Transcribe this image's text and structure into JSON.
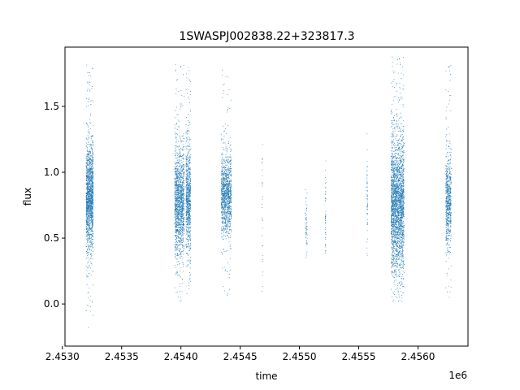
{
  "chart_data": {
    "type": "scatter",
    "title": "1SWASPJ002838.22+323817.3",
    "xlabel": "time",
    "ylabel": "flux",
    "x_offset_label": "1e6",
    "xlim": [
      2453022,
      2456422
    ],
    "ylim": [
      -0.32,
      1.95
    ],
    "x_ticks": [
      2453000,
      2453500,
      2454000,
      2454500,
      2455000,
      2455500,
      2456000
    ],
    "x_tick_labels": [
      "2.4530",
      "2.4535",
      "2.4540",
      "2.4545",
      "2.4550",
      "2.4555",
      "2.4560"
    ],
    "y_ticks": [
      0.0,
      0.5,
      1.0,
      1.5
    ],
    "y_tick_labels": [
      "0.0",
      "0.5",
      "1.0",
      "1.5"
    ],
    "grid": false,
    "legend": "none",
    "point_color": "#1f77b4",
    "series": [
      {
        "clusters": [
          {
            "x_center": 2453228,
            "x_width": 60,
            "y_center": 0.8,
            "y_spread": 0.2,
            "y_min": -0.22,
            "y_max": 1.82,
            "count": 1600
          },
          {
            "x_center": 2453985,
            "x_width": 80,
            "y_center": 0.78,
            "y_spread": 0.2,
            "y_min": 0.0,
            "y_max": 1.82,
            "count": 1500
          },
          {
            "x_center": 2454060,
            "x_width": 40,
            "y_center": 0.8,
            "y_spread": 0.2,
            "y_min": 0.05,
            "y_max": 1.82,
            "count": 800
          },
          {
            "x_center": 2454380,
            "x_width": 85,
            "y_center": 0.82,
            "y_spread": 0.15,
            "y_min": 0.05,
            "y_max": 1.78,
            "count": 1200
          },
          {
            "x_center": 2454685,
            "x_width": 6,
            "y_center": 0.7,
            "y_spread": 0.3,
            "y_min": 0.0,
            "y_max": 1.3,
            "count": 30
          },
          {
            "x_center": 2455055,
            "x_width": 18,
            "y_center": 0.6,
            "y_spread": 0.12,
            "y_min": 0.35,
            "y_max": 0.95,
            "count": 60
          },
          {
            "x_center": 2455218,
            "x_width": 6,
            "y_center": 0.7,
            "y_spread": 0.18,
            "y_min": 0.38,
            "y_max": 1.15,
            "count": 50
          },
          {
            "x_center": 2455570,
            "x_width": 6,
            "y_center": 0.8,
            "y_spread": 0.18,
            "y_min": 0.32,
            "y_max": 1.32,
            "count": 60
          },
          {
            "x_center": 2455825,
            "x_width": 110,
            "y_center": 0.75,
            "y_spread": 0.25,
            "y_min": 0.0,
            "y_max": 1.88,
            "count": 2600
          },
          {
            "x_center": 2456255,
            "x_width": 45,
            "y_center": 0.8,
            "y_spread": 0.17,
            "y_min": 0.0,
            "y_max": 1.82,
            "count": 700
          }
        ]
      }
    ]
  }
}
